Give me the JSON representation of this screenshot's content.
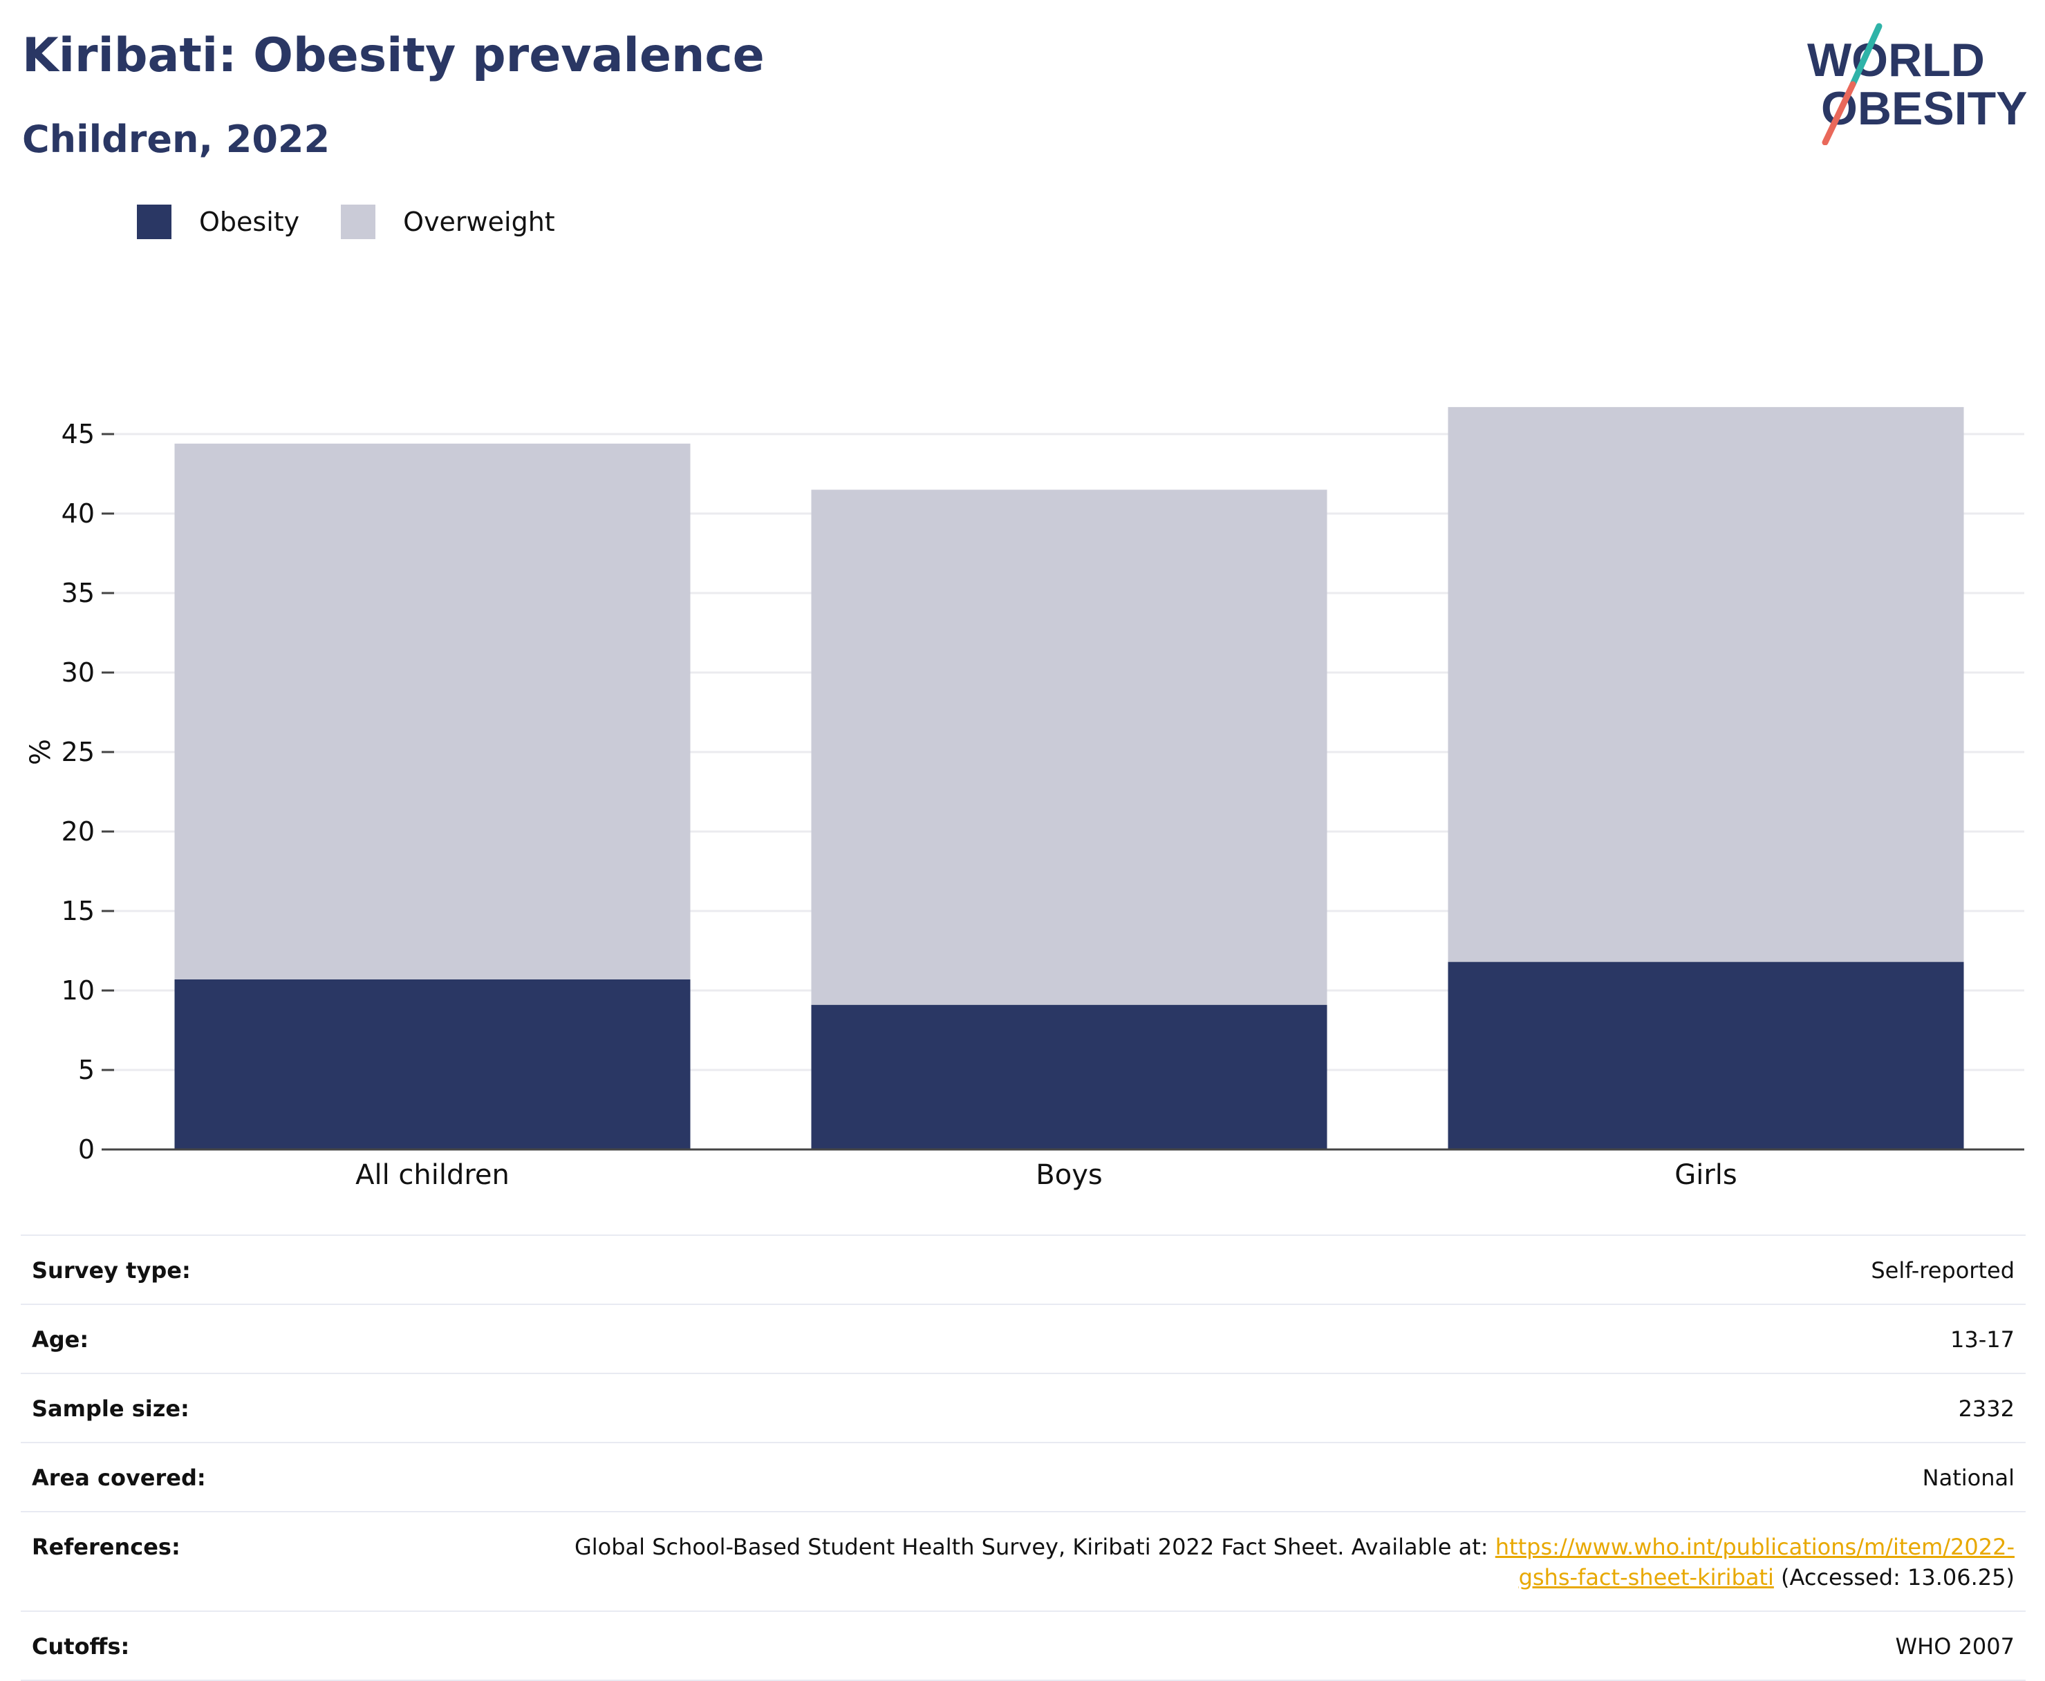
{
  "header": {
    "title": "Kiribati: Obesity prevalence",
    "subtitle": "Children, 2022",
    "logo_text": "WORLD OBESITY"
  },
  "colors": {
    "title": "#2a3764",
    "obesity": "#2a3764",
    "overweight": "#cacbd7",
    "logo_slash_teal": "#2fb3a8",
    "logo_slash_coral": "#e9685a",
    "link": "#e8a800"
  },
  "legend": [
    {
      "label": "Obesity",
      "color": "#2a3764"
    },
    {
      "label": "Overweight",
      "color": "#cacbd7"
    }
  ],
  "chart_data": {
    "type": "bar",
    "stacked": true,
    "categories": [
      "All children",
      "Boys",
      "Girls"
    ],
    "series": [
      {
        "name": "Obesity",
        "values": [
          10.7,
          9.1,
          11.8
        ]
      },
      {
        "name": "Overweight",
        "values": [
          33.7,
          32.4,
          34.9
        ]
      }
    ],
    "ylabel": "%",
    "yticks": [
      0,
      5,
      10,
      15,
      20,
      25,
      30,
      35,
      40,
      45
    ],
    "ylim": [
      0,
      48
    ],
    "grid": true,
    "legend_position": "top-left"
  },
  "info_table": {
    "survey_type": {
      "label": "Survey type:",
      "value": "Self-reported"
    },
    "age": {
      "label": "Age:",
      "value": "13-17"
    },
    "sample_size": {
      "label": "Sample size:",
      "value": "2332"
    },
    "area": {
      "label": "Area covered:",
      "value": "National"
    },
    "references": {
      "label": "References:",
      "text": "Global School-Based Student Health Survey, Kiribati 2022 Fact Sheet. Available at: ",
      "link_line1": "https://www.who.int/publications/m/item/2022-",
      "link_line2": "gshs-fact-sheet-kiribati",
      "accessed": " (Accessed: 13.06.25)"
    },
    "cutoffs": {
      "label": "Cutoffs:",
      "value": "WHO 2007"
    }
  }
}
